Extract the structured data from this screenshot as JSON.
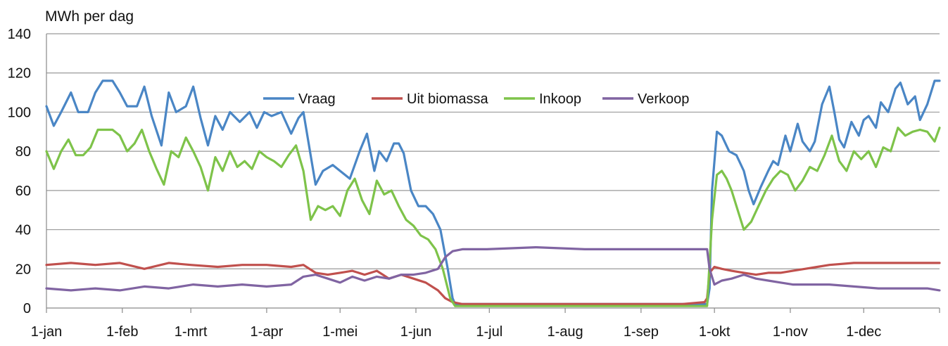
{
  "chart_data": {
    "type": "line",
    "title": "",
    "ylabel": "MWh per dag",
    "xlabel": "",
    "ylim": [
      0,
      140
    ],
    "yticks": [
      "0",
      "20",
      "40",
      "60",
      "80",
      "100",
      "120",
      "140"
    ],
    "xticks": [
      "1-jan",
      "1-feb",
      "1-mrt",
      "1-apr",
      "1-mei",
      "1-jun",
      "1-jul",
      "1-aug",
      "1-sep",
      "1-okt",
      "1-nov",
      "1-dec"
    ],
    "grid": "horizontal",
    "legend_position": "top-center",
    "series": [
      {
        "name": "Vraag",
        "color": "#4a86c5",
        "points": [
          [
            0,
            103
          ],
          [
            3,
            93
          ],
          [
            6,
            100
          ],
          [
            10,
            110
          ],
          [
            13,
            100
          ],
          [
            17,
            100
          ],
          [
            20,
            110
          ],
          [
            23,
            116
          ],
          [
            27,
            116
          ],
          [
            30,
            110
          ],
          [
            33,
            103
          ],
          [
            37,
            103
          ],
          [
            40,
            113
          ],
          [
            43,
            98
          ],
          [
            47,
            83
          ],
          [
            50,
            110
          ],
          [
            53,
            100
          ],
          [
            57,
            103
          ],
          [
            60,
            113
          ],
          [
            63,
            97
          ],
          [
            66,
            83
          ],
          [
            69,
            98
          ],
          [
            72,
            91
          ],
          [
            75,
            100
          ],
          [
            79,
            95
          ],
          [
            83,
            100
          ],
          [
            86,
            92
          ],
          [
            89,
            100
          ],
          [
            92,
            98
          ],
          [
            96,
            100
          ],
          [
            100,
            89
          ],
          [
            103,
            97
          ],
          [
            105,
            100
          ],
          [
            110,
            63
          ],
          [
            113,
            70
          ],
          [
            117,
            73
          ],
          [
            120,
            70
          ],
          [
            124,
            66
          ],
          [
            128,
            80
          ],
          [
            131,
            89
          ],
          [
            134,
            70
          ],
          [
            136,
            80
          ],
          [
            139,
            75
          ],
          [
            142,
            84
          ],
          [
            144,
            84
          ],
          [
            146,
            79
          ],
          [
            149,
            60
          ],
          [
            152,
            52
          ],
          [
            155,
            52
          ],
          [
            158,
            48
          ],
          [
            161,
            40
          ],
          [
            164,
            20
          ],
          [
            166,
            5
          ],
          [
            167,
            2
          ],
          [
            270,
            2
          ],
          [
            271,
            10
          ],
          [
            272,
            60
          ],
          [
            274,
            90
          ],
          [
            276,
            88
          ],
          [
            279,
            80
          ],
          [
            282,
            78
          ],
          [
            285,
            70
          ],
          [
            287,
            60
          ],
          [
            289,
            53
          ],
          [
            292,
            62
          ],
          [
            295,
            70
          ],
          [
            297,
            75
          ],
          [
            299,
            73
          ],
          [
            302,
            88
          ],
          [
            304,
            80
          ],
          [
            307,
            94
          ],
          [
            309,
            85
          ],
          [
            312,
            80
          ],
          [
            314,
            85
          ],
          [
            317,
            104
          ],
          [
            320,
            113
          ],
          [
            322,
            100
          ],
          [
            324,
            86
          ],
          [
            326,
            82
          ],
          [
            329,
            95
          ],
          [
            332,
            88
          ],
          [
            334,
            96
          ],
          [
            336,
            98
          ],
          [
            339,
            92
          ],
          [
            341,
            105
          ],
          [
            344,
            100
          ],
          [
            347,
            112
          ],
          [
            349,
            115
          ],
          [
            352,
            104
          ],
          [
            355,
            108
          ],
          [
            357,
            96
          ],
          [
            360,
            104
          ],
          [
            363,
            116
          ],
          [
            365,
            116
          ]
        ]
      },
      {
        "name": "Uit biomassa",
        "color": "#c0504d",
        "points": [
          [
            0,
            22
          ],
          [
            10,
            23
          ],
          [
            20,
            22
          ],
          [
            30,
            23
          ],
          [
            40,
            20
          ],
          [
            50,
            23
          ],
          [
            59,
            22
          ],
          [
            70,
            21
          ],
          [
            80,
            22
          ],
          [
            90,
            22
          ],
          [
            100,
            21
          ],
          [
            105,
            22
          ],
          [
            110,
            18
          ],
          [
            115,
            17
          ],
          [
            120,
            18
          ],
          [
            125,
            19
          ],
          [
            130,
            17
          ],
          [
            135,
            19
          ],
          [
            140,
            15
          ],
          [
            145,
            17
          ],
          [
            150,
            15
          ],
          [
            155,
            13
          ],
          [
            160,
            9
          ],
          [
            163,
            5
          ],
          [
            166,
            3
          ],
          [
            170,
            2
          ],
          [
            200,
            2
          ],
          [
            220,
            2
          ],
          [
            240,
            2
          ],
          [
            260,
            2
          ],
          [
            269,
            3
          ],
          [
            270,
            5
          ],
          [
            271,
            18
          ],
          [
            273,
            21
          ],
          [
            276,
            20
          ],
          [
            280,
            19
          ],
          [
            285,
            18
          ],
          [
            290,
            17
          ],
          [
            295,
            18
          ],
          [
            300,
            18
          ],
          [
            305,
            19
          ],
          [
            310,
            20
          ],
          [
            315,
            21
          ],
          [
            320,
            22
          ],
          [
            330,
            23
          ],
          [
            340,
            23
          ],
          [
            350,
            23
          ],
          [
            360,
            23
          ],
          [
            365,
            23
          ]
        ]
      },
      {
        "name": "Inkoop",
        "color": "#7ec34a",
        "points": [
          [
            0,
            80
          ],
          [
            3,
            71
          ],
          [
            6,
            80
          ],
          [
            9,
            86
          ],
          [
            12,
            78
          ],
          [
            15,
            78
          ],
          [
            18,
            82
          ],
          [
            21,
            91
          ],
          [
            24,
            91
          ],
          [
            27,
            91
          ],
          [
            30,
            88
          ],
          [
            33,
            80
          ],
          [
            36,
            84
          ],
          [
            39,
            91
          ],
          [
            42,
            80
          ],
          [
            45,
            71
          ],
          [
            48,
            63
          ],
          [
            51,
            80
          ],
          [
            54,
            77
          ],
          [
            57,
            87
          ],
          [
            60,
            80
          ],
          [
            63,
            72
          ],
          [
            66,
            60
          ],
          [
            69,
            77
          ],
          [
            72,
            70
          ],
          [
            75,
            80
          ],
          [
            78,
            72
          ],
          [
            81,
            75
          ],
          [
            84,
            71
          ],
          [
            87,
            80
          ],
          [
            90,
            77
          ],
          [
            93,
            75
          ],
          [
            96,
            72
          ],
          [
            99,
            78
          ],
          [
            102,
            83
          ],
          [
            105,
            70
          ],
          [
            108,
            45
          ],
          [
            111,
            52
          ],
          [
            114,
            50
          ],
          [
            117,
            52
          ],
          [
            120,
            47
          ],
          [
            123,
            60
          ],
          [
            126,
            66
          ],
          [
            129,
            55
          ],
          [
            132,
            48
          ],
          [
            135,
            65
          ],
          [
            138,
            58
          ],
          [
            141,
            60
          ],
          [
            144,
            52
          ],
          [
            147,
            45
          ],
          [
            150,
            42
          ],
          [
            153,
            37
          ],
          [
            156,
            35
          ],
          [
            159,
            30
          ],
          [
            162,
            20
          ],
          [
            165,
            5
          ],
          [
            167,
            1
          ],
          [
            270,
            1
          ],
          [
            272,
            45
          ],
          [
            274,
            68
          ],
          [
            276,
            70
          ],
          [
            278,
            66
          ],
          [
            280,
            60
          ],
          [
            283,
            48
          ],
          [
            285,
            40
          ],
          [
            288,
            44
          ],
          [
            291,
            52
          ],
          [
            294,
            60
          ],
          [
            297,
            66
          ],
          [
            300,
            70
          ],
          [
            303,
            68
          ],
          [
            306,
            60
          ],
          [
            309,
            65
          ],
          [
            312,
            72
          ],
          [
            315,
            70
          ],
          [
            318,
            78
          ],
          [
            321,
            88
          ],
          [
            324,
            75
          ],
          [
            327,
            70
          ],
          [
            330,
            80
          ],
          [
            333,
            76
          ],
          [
            336,
            80
          ],
          [
            339,
            72
          ],
          [
            342,
            82
          ],
          [
            345,
            80
          ],
          [
            348,
            92
          ],
          [
            351,
            88
          ],
          [
            354,
            90
          ],
          [
            357,
            91
          ],
          [
            360,
            90
          ],
          [
            363,
            85
          ],
          [
            365,
            92
          ]
        ]
      },
      {
        "name": "Verkoop",
        "color": "#8064a2",
        "points": [
          [
            0,
            10
          ],
          [
            10,
            9
          ],
          [
            20,
            10
          ],
          [
            30,
            9
          ],
          [
            40,
            11
          ],
          [
            50,
            10
          ],
          [
            60,
            12
          ],
          [
            70,
            11
          ],
          [
            80,
            12
          ],
          [
            90,
            11
          ],
          [
            100,
            12
          ],
          [
            105,
            16
          ],
          [
            110,
            17
          ],
          [
            115,
            15
          ],
          [
            120,
            13
          ],
          [
            125,
            16
          ],
          [
            130,
            14
          ],
          [
            135,
            16
          ],
          [
            140,
            15
          ],
          [
            145,
            17
          ],
          [
            150,
            17
          ],
          [
            155,
            18
          ],
          [
            160,
            20
          ],
          [
            163,
            26
          ],
          [
            166,
            29
          ],
          [
            170,
            30
          ],
          [
            180,
            30
          ],
          [
            200,
            31
          ],
          [
            220,
            30
          ],
          [
            240,
            30
          ],
          [
            260,
            30
          ],
          [
            270,
            30
          ],
          [
            271,
            20
          ],
          [
            273,
            12
          ],
          [
            276,
            14
          ],
          [
            280,
            15
          ],
          [
            285,
            17
          ],
          [
            290,
            15
          ],
          [
            295,
            14
          ],
          [
            300,
            13
          ],
          [
            305,
            12
          ],
          [
            310,
            12
          ],
          [
            320,
            12
          ],
          [
            330,
            11
          ],
          [
            340,
            10
          ],
          [
            350,
            10
          ],
          [
            360,
            10
          ],
          [
            365,
            9
          ]
        ]
      }
    ]
  }
}
